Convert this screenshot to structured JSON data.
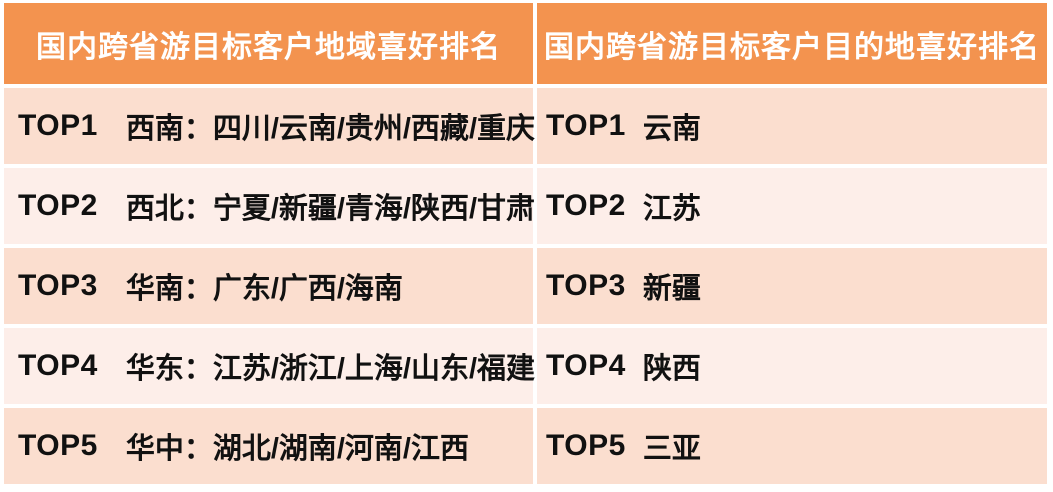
{
  "colors": {
    "header_bg": "#F3934F",
    "header_text": "#FFFFFF",
    "row_dark_bg": "#FBDECF",
    "row_light_bg": "#FDEEE9",
    "row_text": "#111111",
    "page_bg": "#FFFFFF"
  },
  "left_table": {
    "title": "国内跨省游目标客户地域喜好排名",
    "rows": [
      {
        "rank": "TOP1",
        "value": "西南：四川/云南/贵州/西藏/重庆"
      },
      {
        "rank": "TOP2",
        "value": "西北：宁夏/新疆/青海/陕西/甘肃"
      },
      {
        "rank": "TOP3",
        "value": "华南：广东/广西/海南"
      },
      {
        "rank": "TOP4",
        "value": "华东：江苏/浙江/上海/山东/福建"
      },
      {
        "rank": "TOP5",
        "value": "华中：湖北/湖南/河南/江西"
      }
    ]
  },
  "right_table": {
    "title": "国内跨省游目标客户目的地喜好排名",
    "rows": [
      {
        "rank": "TOP1",
        "value": "云南"
      },
      {
        "rank": "TOP2",
        "value": "江苏"
      },
      {
        "rank": "TOP3",
        "value": "新疆"
      },
      {
        "rank": "TOP4",
        "value": "陕西"
      },
      {
        "rank": "TOP5",
        "value": "三亚"
      }
    ]
  },
  "chart_data": [
    {
      "type": "table",
      "title": "国内跨省游目标客户地域喜好排名",
      "rows": [
        [
          "TOP1",
          "西南：四川/云南/贵州/西藏/重庆"
        ],
        [
          "TOP2",
          "西北：宁夏/新疆/青海/陕西/甘肃"
        ],
        [
          "TOP3",
          "华南：广东/广西/海南"
        ],
        [
          "TOP4",
          "华东：江苏/浙江/上海/山东/福建"
        ],
        [
          "TOP5",
          "华中：湖北/湖南/河南/江西"
        ]
      ],
      "layout": {
        "header_style": "orange-banner",
        "row_striping": [
          "dark-pink",
          "light-pink"
        ]
      }
    },
    {
      "type": "table",
      "title": "国内跨省游目标客户目的地喜好排名",
      "rows": [
        [
          "TOP1",
          "云南"
        ],
        [
          "TOP2",
          "江苏"
        ],
        [
          "TOP3",
          "新疆"
        ],
        [
          "TOP4",
          "陕西"
        ],
        [
          "TOP5",
          "三亚"
        ]
      ],
      "layout": {
        "header_style": "orange-banner",
        "row_striping": [
          "dark-pink",
          "light-pink"
        ]
      }
    }
  ]
}
